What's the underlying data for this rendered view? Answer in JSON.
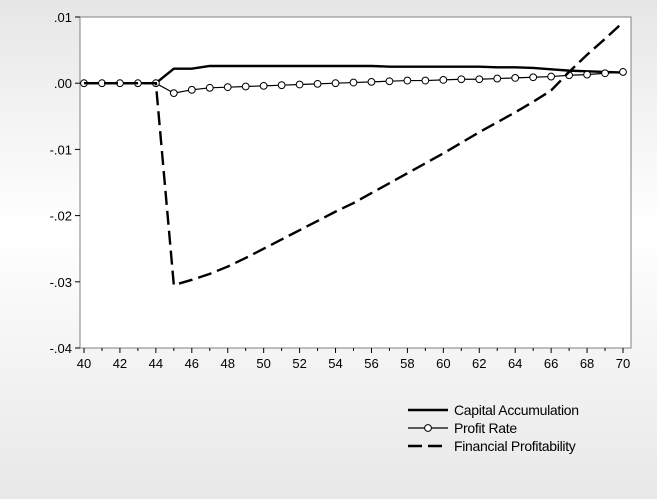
{
  "chart_data": {
    "type": "line",
    "title": "",
    "xlabel": "",
    "ylabel": "",
    "xlim": [
      40,
      70
    ],
    "ylim": [
      -0.04,
      0.01
    ],
    "x_ticks": [
      40,
      42,
      44,
      46,
      48,
      50,
      52,
      54,
      56,
      58,
      60,
      62,
      64,
      66,
      68,
      70
    ],
    "x_tick_labels": [
      "40",
      "42",
      "44",
      "46",
      "48",
      "50",
      "52",
      "54",
      "56",
      "58",
      "60",
      "62",
      "64",
      "66",
      "68",
      "70"
    ],
    "y_ticks": [
      0.01,
      0.0,
      -0.01,
      -0.02,
      -0.03,
      -0.04
    ],
    "y_tick_labels": [
      ".01",
      ".00",
      "-.01",
      "-.02",
      "-.03",
      "-.04"
    ],
    "grid": false,
    "legend_position": "bottom-right",
    "x": [
      40,
      41,
      42,
      43,
      44,
      45,
      46,
      47,
      48,
      49,
      50,
      51,
      52,
      53,
      54,
      55,
      56,
      57,
      58,
      59,
      60,
      61,
      62,
      63,
      64,
      65,
      66,
      67,
      68,
      69,
      70
    ],
    "series": [
      {
        "name": "Capital Accumulation",
        "style": "solid",
        "color": "#000000",
        "values": [
          0,
          0,
          0,
          0,
          0,
          0.0022,
          0.0022,
          0.0026,
          0.0026,
          0.0026,
          0.0026,
          0.0026,
          0.0026,
          0.0026,
          0.0026,
          0.0026,
          0.0026,
          0.0025,
          0.0025,
          0.0025,
          0.0025,
          0.0025,
          0.0025,
          0.0024,
          0.0024,
          0.0023,
          0.0021,
          0.0019,
          0.0018,
          0.0017,
          0.0016
        ]
      },
      {
        "name": "Profit Rate",
        "style": "solid-markers",
        "color": "#000000",
        "values": [
          0,
          0,
          0,
          0,
          0,
          -0.0015,
          -0.001,
          -0.0007,
          -0.0006,
          -0.0005,
          -0.0004,
          -0.0003,
          -0.0002,
          -0.0001,
          0,
          0.0001,
          0.0002,
          0.0003,
          0.0004,
          0.0004,
          0.0005,
          0.0006,
          0.0006,
          0.0007,
          0.0008,
          0.0009,
          0.001,
          0.0012,
          0.0013,
          0.0015,
          0.0017
        ]
      },
      {
        "name": "Financial Profitability",
        "style": "dashed",
        "color": "#000000",
        "values": [
          0,
          0,
          0,
          0,
          0,
          -0.0305,
          -0.0297,
          -0.0288,
          -0.0277,
          -0.0264,
          -0.025,
          -0.0236,
          -0.0222,
          -0.0208,
          -0.0194,
          -0.0181,
          -0.0166,
          -0.0151,
          -0.0136,
          -0.0121,
          -0.0106,
          -0.009,
          -0.0074,
          -0.0059,
          -0.0044,
          -0.0028,
          -0.0011,
          0.0017,
          0.0043,
          0.0067,
          0.0092
        ]
      }
    ]
  }
}
